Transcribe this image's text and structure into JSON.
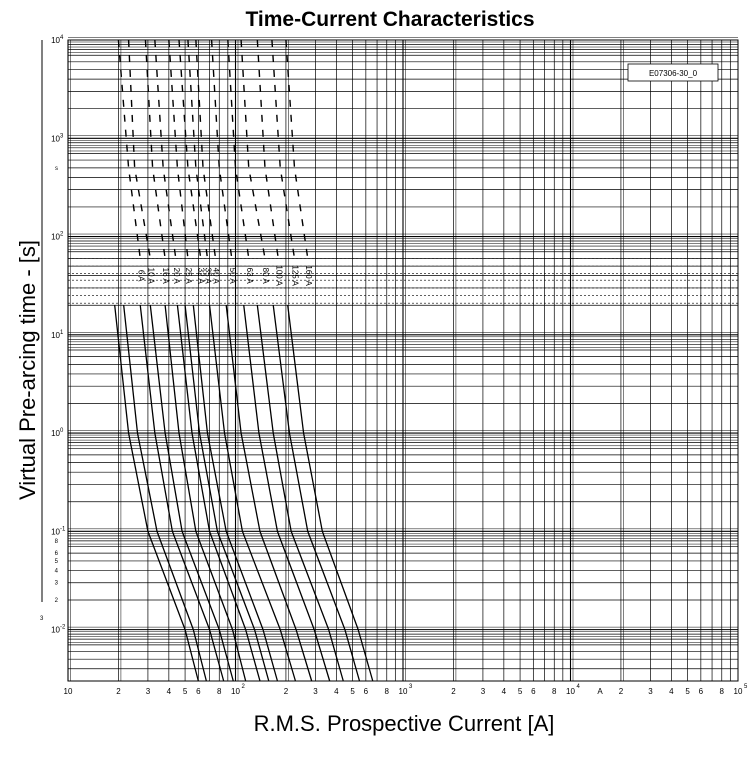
{
  "chart_data": {
    "type": "line",
    "title": "Time-Current Characteristics",
    "xlabel": "R.M.S. Prospective Current [A]",
    "ylabel": "Virtual Pre-arcing time - [s]",
    "x_scale": "log",
    "y_scale": "log",
    "xlim": [
      10,
      100000
    ],
    "ylim": [
      0.003,
      10000
    ],
    "grid": true,
    "x_tick_labels": [
      {
        "value": 10,
        "label": "10"
      },
      {
        "value": 20,
        "label": "2"
      },
      {
        "value": 30,
        "label": "3"
      },
      {
        "value": 40,
        "label": "4"
      },
      {
        "value": 50,
        "label": "5"
      },
      {
        "value": 60,
        "label": "6"
      },
      {
        "value": 80,
        "label": "8"
      },
      {
        "value": 100,
        "label": "10"
      },
      {
        "value": 200,
        "label": "2"
      },
      {
        "value": 300,
        "label": "3"
      },
      {
        "value": 400,
        "label": "4"
      },
      {
        "value": 500,
        "label": "5"
      },
      {
        "value": 600,
        "label": "6"
      },
      {
        "value": 800,
        "label": "8"
      },
      {
        "value": 1000,
        "label": "10"
      },
      {
        "value": 2000,
        "label": "2"
      },
      {
        "value": 3000,
        "label": "3"
      },
      {
        "value": 4000,
        "label": "4"
      },
      {
        "value": 5000,
        "label": "5"
      },
      {
        "value": 6000,
        "label": "6"
      },
      {
        "value": 8000,
        "label": "8"
      },
      {
        "value": 10000,
        "label": "10"
      },
      {
        "value": 15000,
        "label": "A"
      },
      {
        "value": 20000,
        "label": "2"
      },
      {
        "value": 30000,
        "label": "3"
      },
      {
        "value": 40000,
        "label": "4"
      },
      {
        "value": 50000,
        "label": "5"
      },
      {
        "value": 60000,
        "label": "6"
      },
      {
        "value": 80000,
        "label": "8"
      },
      {
        "value": 100000,
        "label": "10"
      }
    ],
    "x_tick_exponents": [
      {
        "value": 100,
        "label": "2"
      },
      {
        "value": 1000,
        "label": "3"
      },
      {
        "value": 10000,
        "label": "4"
      },
      {
        "value": 100000,
        "label": "5"
      }
    ],
    "y_tick_labels": [
      {
        "value": 10000,
        "label": "10",
        "exp": "4"
      },
      {
        "value": 1000,
        "label": "10",
        "exp": "3"
      },
      {
        "value": 100,
        "label": "10",
        "exp": "2"
      },
      {
        "value": 10,
        "label": "10",
        "exp": "1"
      },
      {
        "value": 1,
        "label": "10",
        "exp": "0"
      },
      {
        "value": 0.1,
        "label": "10",
        "exp": "-1"
      },
      {
        "value": 0.01,
        "label": "10",
        "exp": "-2"
      }
    ],
    "y_minor_labels": [
      {
        "value": 500,
        "label": "s"
      },
      {
        "value": 0.08,
        "label": "8"
      },
      {
        "value": 0.06,
        "label": "6"
      },
      {
        "value": 0.05,
        "label": "5"
      },
      {
        "value": 0.04,
        "label": "4"
      },
      {
        "value": 0.03,
        "label": "3"
      },
      {
        "value": 0.02,
        "label": "2"
      }
    ],
    "series": [
      {
        "name": "6 A",
        "points": [
          [
            20,
            10000
          ],
          [
            23,
            500
          ],
          [
            27,
            60
          ],
          [
            19,
            20
          ],
          [
            23,
            1
          ],
          [
            30,
            0.1
          ],
          [
            50,
            0.01
          ],
          [
            60,
            0.003
          ]
        ]
      },
      {
        "name": "10 A",
        "points": [
          [
            23,
            10000
          ],
          [
            25,
            500
          ],
          [
            31,
            60
          ],
          [
            21.5,
            20
          ],
          [
            26,
            1
          ],
          [
            34,
            0.1
          ],
          [
            56,
            0.01
          ],
          [
            67,
            0.003
          ]
        ]
      },
      {
        "name": "16 A",
        "points": [
          [
            29,
            10000
          ],
          [
            32,
            500
          ],
          [
            38,
            60
          ],
          [
            27,
            20
          ],
          [
            33,
            1
          ],
          [
            42,
            0.1
          ],
          [
            70,
            0.01
          ],
          [
            85,
            0.003
          ]
        ]
      },
      {
        "name": "20 A",
        "points": [
          [
            33,
            10000
          ],
          [
            37,
            500
          ],
          [
            44,
            60
          ],
          [
            31,
            20
          ],
          [
            38,
            1
          ],
          [
            48,
            0.1
          ],
          [
            80,
            0.01
          ],
          [
            97,
            0.003
          ]
        ]
      },
      {
        "name": "25 A",
        "points": [
          [
            40,
            10000
          ],
          [
            45,
            500
          ],
          [
            52,
            60
          ],
          [
            38,
            20
          ],
          [
            46,
            1
          ],
          [
            58,
            0.1
          ],
          [
            96,
            0.01
          ],
          [
            115,
            0.003
          ]
        ]
      },
      {
        "name": "32 A",
        "points": [
          [
            46,
            10000
          ],
          [
            52,
            500
          ],
          [
            62,
            60
          ],
          [
            45,
            20
          ],
          [
            55,
            1
          ],
          [
            70,
            0.1
          ],
          [
            115,
            0.01
          ],
          [
            140,
            0.003
          ]
        ]
      },
      {
        "name": "35 A",
        "points": [
          [
            52,
            10000
          ],
          [
            58,
            500
          ],
          [
            68,
            60
          ],
          [
            50,
            20
          ],
          [
            61,
            1
          ],
          [
            78,
            0.1
          ],
          [
            130,
            0.01
          ],
          [
            158,
            0.003
          ]
        ]
      },
      {
        "name": "40 A",
        "points": [
          [
            58,
            10000
          ],
          [
            64,
            500
          ],
          [
            76,
            60
          ],
          [
            56,
            20
          ],
          [
            68,
            1
          ],
          [
            88,
            0.1
          ],
          [
            146,
            0.01
          ],
          [
            178,
            0.003
          ]
        ]
      },
      {
        "name": "50 A",
        "points": [
          [
            72,
            10000
          ],
          [
            80,
            500
          ],
          [
            95,
            60
          ],
          [
            70,
            20
          ],
          [
            86,
            1
          ],
          [
            110,
            0.1
          ],
          [
            185,
            0.01
          ],
          [
            228,
            0.003
          ]
        ]
      },
      {
        "name": "63 A",
        "points": [
          [
            90,
            10000
          ],
          [
            100,
            500
          ],
          [
            120,
            60
          ],
          [
            88,
            20
          ],
          [
            108,
            1
          ],
          [
            140,
            0.1
          ],
          [
            230,
            0.01
          ],
          [
            285,
            0.003
          ]
        ]
      },
      {
        "name": "80 A",
        "points": [
          [
            108,
            10000
          ],
          [
            120,
            500
          ],
          [
            150,
            60
          ],
          [
            112,
            20
          ],
          [
            138,
            1
          ],
          [
            178,
            0.1
          ],
          [
            295,
            0.01
          ],
          [
            365,
            0.003
          ]
        ]
      },
      {
        "name": "100 A",
        "points": [
          [
            135,
            10000
          ],
          [
            150,
            500
          ],
          [
            180,
            60
          ],
          [
            135,
            20
          ],
          [
            168,
            1
          ],
          [
            215,
            0.1
          ],
          [
            360,
            0.01
          ],
          [
            440,
            0.003
          ]
        ]
      },
      {
        "name": "125 A",
        "points": [
          [
            165,
            10000
          ],
          [
            185,
            500
          ],
          [
            225,
            60
          ],
          [
            168,
            20
          ],
          [
            210,
            1
          ],
          [
            270,
            0.1
          ],
          [
            450,
            0.01
          ],
          [
            550,
            0.003
          ]
        ]
      },
      {
        "name": "160 A",
        "points": [
          [
            200,
            10000
          ],
          [
            225,
            500
          ],
          [
            270,
            60
          ],
          [
            205,
            20
          ],
          [
            255,
            1
          ],
          [
            330,
            0.1
          ],
          [
            540,
            0.01
          ],
          [
            660,
            0.003
          ]
        ]
      }
    ],
    "annotation": "E07306-30_0",
    "left_margin_mark": "3"
  }
}
